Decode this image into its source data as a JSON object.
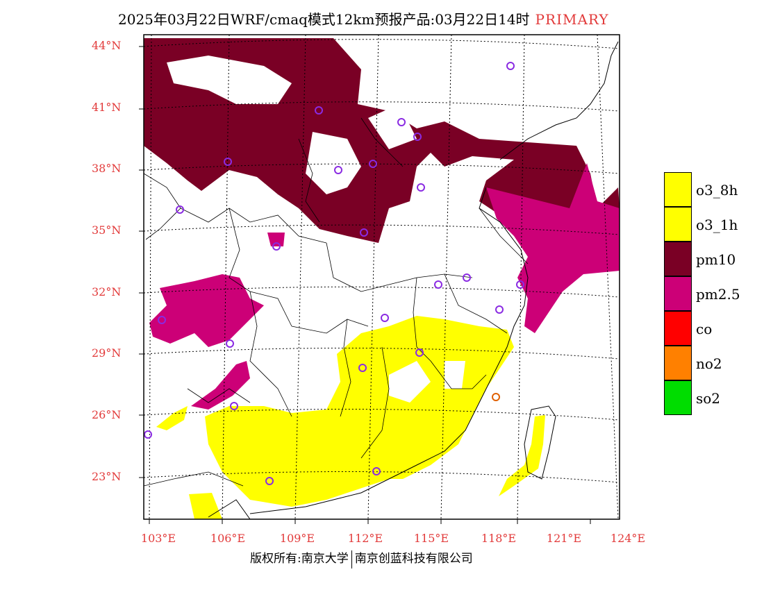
{
  "header": {
    "title": "2025年03月22日WRF/cmaq模式12km预报产品:03月22日14时",
    "tag": "PRIMARY"
  },
  "map": {
    "lat_labels": [
      "44°N",
      "41°N",
      "38°N",
      "35°N",
      "32°N",
      "29°N",
      "26°N",
      "23°N"
    ],
    "lon_labels": [
      "103°E",
      "106°E",
      "109°E",
      "112°E",
      "115°E",
      "118°E",
      "121°E",
      "124°E"
    ],
    "lat_range": [
      21,
      44.5
    ],
    "lon_range": [
      102.7,
      124
    ],
    "pollutant_colors": {
      "pm10": "#7a0025",
      "pm2.5": "#cc0077",
      "o3": "#ffff00"
    },
    "station_marker_color": "#8a2be2"
  },
  "legend": {
    "items": [
      {
        "label": "o3_8h",
        "color": "#ffff00"
      },
      {
        "label": "o3_1h",
        "color": "#ffff00"
      },
      {
        "label": "pm10",
        "color": "#7a0025"
      },
      {
        "label": "pm2.5",
        "color": "#cc0077"
      },
      {
        "label": "co",
        "color": "#ff0000"
      },
      {
        "label": "no2",
        "color": "#ff8000"
      },
      {
        "label": "so2",
        "color": "#00dd00"
      }
    ]
  },
  "footer": {
    "left": "版权所有:南京大学",
    "right": "南京创蓝科技有限公司"
  }
}
